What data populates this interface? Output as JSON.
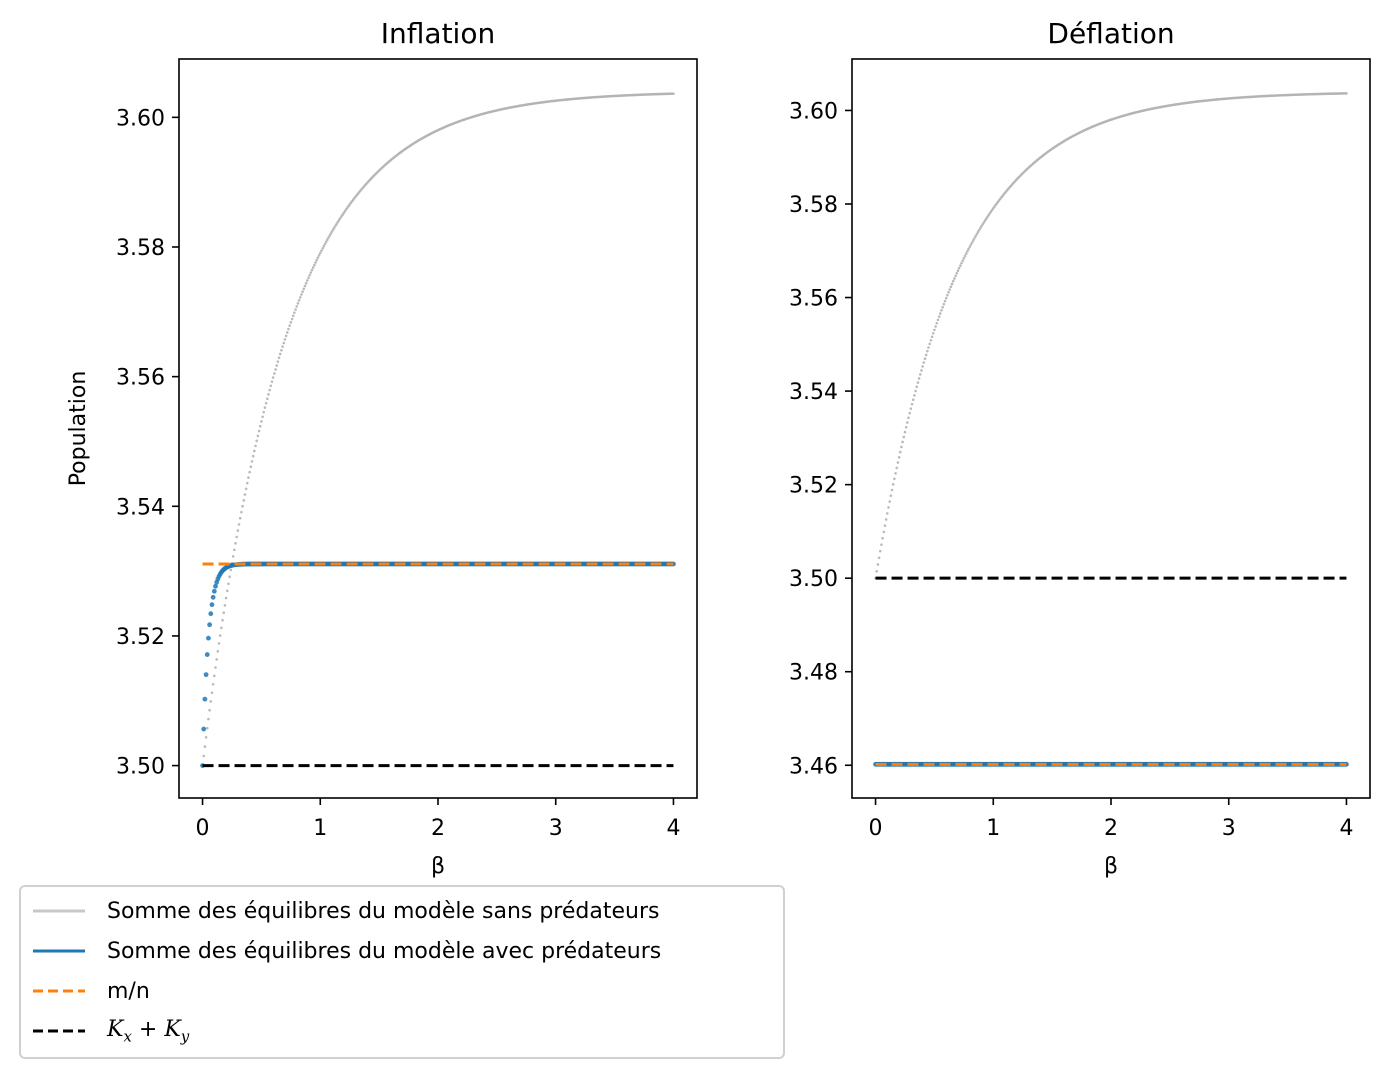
{
  "chart_data": [
    {
      "type": "scatter",
      "title": "Inflation",
      "xlabel": "β",
      "ylabel": "Population",
      "xlim": [
        -0.2,
        4.2
      ],
      "ylim": [
        3.495,
        3.609
      ],
      "xticks": [
        0,
        1,
        2,
        3,
        4
      ],
      "xtick_labels": [
        "0",
        "1",
        "2",
        "3",
        "4"
      ],
      "yticks": [
        3.5,
        3.52,
        3.54,
        3.56,
        3.58,
        3.6
      ],
      "ytick_labels": [
        "3.50",
        "3.52",
        "3.54",
        "3.56",
        "3.58",
        "3.60"
      ],
      "series": [
        {
          "name": "Somme des équilibres du modèle sans prédateurs",
          "kind": "scatter",
          "color": "#b3b3b3",
          "model": {
            "form": "y0 + A*(1-exp(-x/tau))",
            "y0": 3.5,
            "A": 0.104,
            "tau": 0.7
          }
        },
        {
          "name": "Somme des équilibres du modèle avec prédateurs",
          "kind": "scatter",
          "color": "#1f77b4",
          "model": {
            "form": "y0 + A*(1-exp(-x/tau))",
            "y0": 3.5,
            "A": 0.0311,
            "tau": 0.05
          }
        },
        {
          "name": "m/n",
          "kind": "dashed-line",
          "color": "#ff7f0e",
          "x": [
            0,
            4
          ],
          "y": [
            3.5311,
            3.5311
          ]
        },
        {
          "name": "Kx+Ky",
          "kind": "dashed-line",
          "color": "#000000",
          "x": [
            0,
            4
          ],
          "y": [
            3.5,
            3.5
          ]
        }
      ]
    },
    {
      "type": "scatter",
      "title": "Déflation",
      "xlabel": "β",
      "ylabel": "",
      "xlim": [
        -0.2,
        4.2
      ],
      "ylim": [
        3.453,
        3.611
      ],
      "xticks": [
        0,
        1,
        2,
        3,
        4
      ],
      "xtick_labels": [
        "0",
        "1",
        "2",
        "3",
        "4"
      ],
      "yticks": [
        3.46,
        3.48,
        3.5,
        3.52,
        3.54,
        3.56,
        3.58,
        3.6
      ],
      "ytick_labels": [
        "3.46",
        "3.48",
        "3.50",
        "3.52",
        "3.54",
        "3.56",
        "3.58",
        "3.60"
      ],
      "series": [
        {
          "name": "Somme des équilibres du modèle sans prédateurs",
          "kind": "scatter",
          "color": "#b3b3b3",
          "model": {
            "form": "y0 + A*(1-exp(-x/tau))",
            "y0": 3.5,
            "A": 0.104,
            "tau": 0.7
          }
        },
        {
          "name": "Somme des équilibres du modèle avec prédateurs",
          "kind": "scatter",
          "color": "#1f77b4",
          "model": {
            "form": "y0 + A*(1-exp(-x/tau))",
            "y0": 3.4602,
            "A": 0.0,
            "tau": 0.05
          }
        },
        {
          "name": "m/n",
          "kind": "dashed-line",
          "color": "#ff7f0e",
          "x": [
            0,
            4
          ],
          "y": [
            3.4602,
            3.4602
          ]
        },
        {
          "name": "Kx+Ky",
          "kind": "dashed-line",
          "color": "#000000",
          "x": [
            0,
            4
          ],
          "y": [
            3.5,
            3.5
          ]
        }
      ]
    }
  ],
  "legend": {
    "placement": "below-left",
    "items": [
      {
        "label": "Somme des équilibres du modèle sans prédateurs",
        "color": "#c8c8c8",
        "style": "solid"
      },
      {
        "label": "Somme des équilibres du modèle avec prédateurs",
        "color": "#1f77b4",
        "style": "solid"
      },
      {
        "label": "m/n",
        "color": "#ff7f0e",
        "style": "dashed"
      },
      {
        "label_math": {
          "base1": "K",
          "sub1": "x",
          "op": " + ",
          "base2": "K",
          "sub2": "y"
        },
        "color": "#000000",
        "style": "dashed"
      }
    ]
  }
}
